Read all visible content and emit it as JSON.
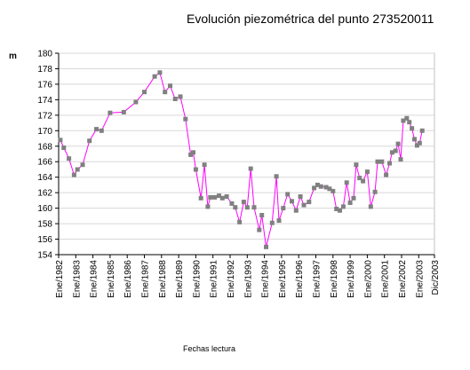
{
  "chart_data": {
    "type": "line",
    "title": "Evolución piezométrica del punto 273520011",
    "ylabel": "m",
    "xlabel": "Fechas lectura",
    "ylim": [
      154,
      180
    ],
    "yticks": [
      154,
      156,
      158,
      160,
      162,
      164,
      166,
      168,
      170,
      172,
      174,
      176,
      178,
      180
    ],
    "xlim": [
      1982.0,
      2003.917
    ],
    "xticks": [
      {
        "label": "Ene/1982",
        "value": 1982
      },
      {
        "label": "Ene/1983",
        "value": 1983
      },
      {
        "label": "Ene/1984",
        "value": 1984
      },
      {
        "label": "Ene/1985",
        "value": 1985
      },
      {
        "label": "Ene/1986",
        "value": 1986
      },
      {
        "label": "Ene/1987",
        "value": 1987
      },
      {
        "label": "Ene/1988",
        "value": 1988
      },
      {
        "label": "Ene/1989",
        "value": 1989
      },
      {
        "label": "Ene/1990",
        "value": 1990
      },
      {
        "label": "Ene/1991",
        "value": 1991
      },
      {
        "label": "Ene/1992",
        "value": 1992
      },
      {
        "label": "Ene/1993",
        "value": 1993
      },
      {
        "label": "Ene/1994",
        "value": 1994
      },
      {
        "label": "Ene/1995",
        "value": 1995
      },
      {
        "label": "Ene/1996",
        "value": 1996
      },
      {
        "label": "Ene/1997",
        "value": 1997
      },
      {
        "label": "Ene/1998",
        "value": 1998
      },
      {
        "label": "Ene/1999",
        "value": 1999
      },
      {
        "label": "Ene/2000",
        "value": 2000
      },
      {
        "label": "Ene/2001",
        "value": 2001
      },
      {
        "label": "Ene/2002",
        "value": 2002
      },
      {
        "label": "Ene/2003",
        "value": 2003
      },
      {
        "label": "Dic/2003",
        "value": 2003.917
      }
    ],
    "grid": true,
    "line_color": "#ff00ff",
    "marker_color": "#808080",
    "series": [
      {
        "x": [
          1982.1,
          1982.3,
          1982.6,
          1982.9,
          1983.1,
          1983.4,
          1983.8,
          1984.2,
          1984.5,
          1985.0,
          1985.8,
          1986.5,
          1987.0,
          1987.6,
          1987.9,
          1988.2,
          1988.5,
          1988.8,
          1989.1,
          1989.4,
          1989.7,
          1989.85,
          1990.0,
          1990.3,
          1990.5,
          1990.7,
          1990.85,
          1991.1,
          1991.35,
          1991.55,
          1991.8,
          1992.1,
          1992.3,
          1992.55,
          1992.8,
          1993.0,
          1993.2,
          1993.4,
          1993.7,
          1993.85,
          1994.1,
          1994.45,
          1994.7,
          1994.85,
          1995.1,
          1995.35,
          1995.6,
          1995.85,
          1996.1,
          1996.3,
          1996.6,
          1996.9,
          1997.1,
          1997.3,
          1997.6,
          1997.8,
          1998.0,
          1998.2,
          1998.4,
          1998.6,
          1998.8,
          1999.0,
          1999.2,
          1999.35,
          1999.55,
          1999.75,
          2000.0,
          2000.2,
          2000.45,
          2000.6,
          2000.85,
          2001.1,
          2001.3,
          2001.45,
          2001.65,
          2001.8,
          2001.95,
          2002.1,
          2002.3,
          2002.45,
          2002.6,
          2002.75,
          2002.9,
          2003.05,
          2003.2
        ],
        "y": [
          168.8,
          167.8,
          166.4,
          164.3,
          165.0,
          165.6,
          168.7,
          170.2,
          170.0,
          172.3,
          172.4,
          173.7,
          175.0,
          177.0,
          177.5,
          175.0,
          175.8,
          174.1,
          174.4,
          171.5,
          166.9,
          167.2,
          165.0,
          161.3,
          165.6,
          160.2,
          161.4,
          161.4,
          161.6,
          161.3,
          161.5,
          160.6,
          160.1,
          158.2,
          160.8,
          160.1,
          165.1,
          160.1,
          157.2,
          159.1,
          155.0,
          158.1,
          164.1,
          158.4,
          160.0,
          161.8,
          160.9,
          159.7,
          161.5,
          160.4,
          160.8,
          162.6,
          163.0,
          162.8,
          162.7,
          162.5,
          162.2,
          159.9,
          159.7,
          160.2,
          163.3,
          160.7,
          161.3,
          165.6,
          163.9,
          163.5,
          164.7,
          160.2,
          162.1,
          166.0,
          166.0,
          164.3,
          165.8,
          167.2,
          167.4,
          168.3,
          166.3,
          171.3,
          171.6,
          171.1,
          170.3,
          168.9,
          168.1,
          168.4,
          170.0
        ]
      }
    ]
  }
}
